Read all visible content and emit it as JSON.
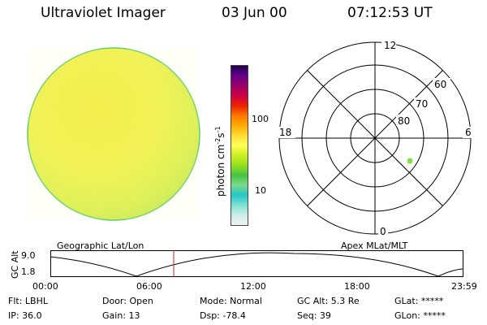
{
  "header": {
    "instrument": "Ultraviolet Imager",
    "date": "03 Jun 00",
    "time": "07:12:53 UT"
  },
  "colorbar": {
    "label_main": "photon cm",
    "label_exp1": "-2",
    "label_mid": "s",
    "label_exp2": "-1",
    "tick_high": "100",
    "tick_low": "10",
    "colors": [
      "#f2f2f2",
      "#cdeee8",
      "#7fe0d0",
      "#22c8c8",
      "#7cd98a",
      "#44c444",
      "#96e01e",
      "#ccee22",
      "#ffff55",
      "#ffdd33",
      "#ffaa00",
      "#ff7700",
      "#ee2200",
      "#cc0044",
      "#990066",
      "#660088",
      "#220055"
    ]
  },
  "polar": {
    "label_top": "12",
    "label_left": "18",
    "label_right": "6",
    "label_bottom": "0",
    "ring_labels": [
      "60",
      "70",
      "80"
    ],
    "dot_color": "#88dd44"
  },
  "timeline": {
    "left_caption": "Geographic Lat/Lon",
    "right_caption": "Apex MLat/MLT",
    "axis_label": "GC Alt",
    "y_max": "9.0",
    "y_min": "1.8",
    "x_ticks": [
      "00:00",
      "06:00",
      "12:00",
      "18:00",
      "23:59"
    ],
    "marker_color": "#cc2222"
  },
  "info": {
    "flt": "Flt: LBHL",
    "ip": "IP: 36.0",
    "door": "Door: Open",
    "gain": "Gain: 13",
    "mode": "Mode: Normal",
    "dsp": "Dsp:  -78.4",
    "gc_alt": "GC Alt: 5.3 Re",
    "seq": "Seq: 39",
    "glat": "GLat: *****",
    "glon": "GLon: *****"
  }
}
